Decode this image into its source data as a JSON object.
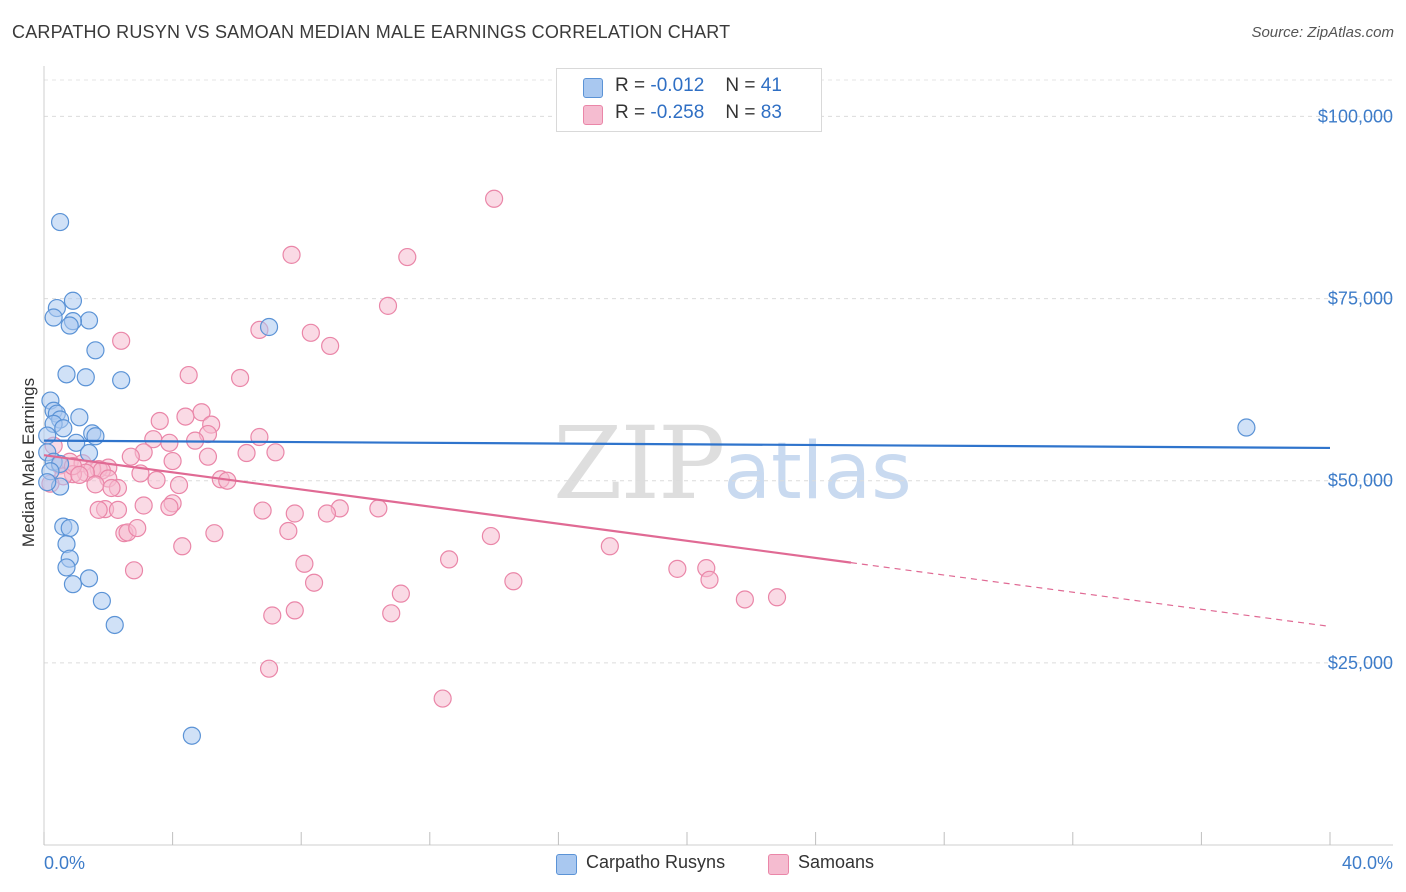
{
  "header": {
    "title": "CARPATHO RUSYN VS SAMOAN MEDIAN MALE EARNINGS CORRELATION CHART",
    "source": "Source: ZipAtlas.com"
  },
  "watermark": {
    "zip": "ZIP",
    "atlas": "atlas"
  },
  "legend_top": [
    {
      "r_label": "R =",
      "r_value": "-0.012",
      "n_label": "N =",
      "n_value": "41"
    },
    {
      "r_label": "R =",
      "r_value": "-0.258",
      "n_label": "N =",
      "n_value": "83"
    }
  ],
  "legend_bottom": [
    {
      "label": "Carpatho Rusyns"
    },
    {
      "label": "Samoans"
    }
  ],
  "colors": {
    "blue_fill": "#a9c8f0",
    "blue_stroke": "#5b93d6",
    "blue_line": "#2f74cc",
    "pink_fill": "#f5bcd0",
    "pink_stroke": "#ea86a8",
    "pink_line": "#e06a94",
    "axis_text": "#3d7cc9"
  },
  "chart_data": {
    "type": "scatter",
    "title": "CARPATHO RUSYN VS SAMOAN MEDIAN MALE EARNINGS CORRELATION CHART",
    "xlabel": "",
    "ylabel": "Median Male Earnings",
    "xlim": [
      0,
      40
    ],
    "ylim": [
      0,
      105000
    ],
    "x_tick_labels": [
      "0.0%",
      "40.0%"
    ],
    "y_ticks": [
      {
        "value": 25000,
        "label": "$25,000"
      },
      {
        "value": 50000,
        "label": "$50,000"
      },
      {
        "value": 75000,
        "label": "$75,000"
      },
      {
        "value": 100000,
        "label": "$100,000"
      }
    ],
    "grid": true,
    "series": [
      {
        "name": "Carpatho Rusyns",
        "R": -0.012,
        "N": 41,
        "trend": {
          "x": [
            0,
            40
          ],
          "y": [
            55500,
            54500
          ],
          "solid_to": 40
        },
        "points": [
          [
            0.5,
            85500
          ],
          [
            0.9,
            74700
          ],
          [
            0.4,
            73700
          ],
          [
            0.3,
            72400
          ],
          [
            1.4,
            72000
          ],
          [
            0.9,
            71900
          ],
          [
            0.8,
            71300
          ],
          [
            7.0,
            71100
          ],
          [
            1.6,
            67900
          ],
          [
            0.7,
            64600
          ],
          [
            1.3,
            64200
          ],
          [
            2.4,
            63800
          ],
          [
            0.2,
            61000
          ],
          [
            0.3,
            59600
          ],
          [
            0.4,
            59200
          ],
          [
            1.1,
            58700
          ],
          [
            0.5,
            58400
          ],
          [
            0.3,
            57800
          ],
          [
            0.6,
            57200
          ],
          [
            1.5,
            56500
          ],
          [
            1.6,
            56100
          ],
          [
            0.1,
            56200
          ],
          [
            1.0,
            55200
          ],
          [
            0.1,
            53900
          ],
          [
            1.4,
            53800
          ],
          [
            0.3,
            52600
          ],
          [
            0.5,
            52300
          ],
          [
            0.2,
            51300
          ],
          [
            0.5,
            49200
          ],
          [
            0.6,
            43700
          ],
          [
            0.8,
            43500
          ],
          [
            0.7,
            41300
          ],
          [
            0.8,
            39300
          ],
          [
            0.7,
            38100
          ],
          [
            1.4,
            36600
          ],
          [
            0.9,
            35800
          ],
          [
            1.8,
            33500
          ],
          [
            2.2,
            30200
          ],
          [
            4.6,
            15000
          ],
          [
            37.4,
            57300
          ],
          [
            0.1,
            49800
          ]
        ]
      },
      {
        "name": "Samoans",
        "R": -0.258,
        "N": 83,
        "trend": {
          "x": [
            0,
            40
          ],
          "y": [
            53500,
            30000
          ],
          "solid_to": 25.1
        },
        "points": [
          [
            14.0,
            88700
          ],
          [
            7.7,
            81000
          ],
          [
            11.3,
            80700
          ],
          [
            10.7,
            74000
          ],
          [
            6.7,
            70700
          ],
          [
            8.3,
            70300
          ],
          [
            2.4,
            69200
          ],
          [
            8.9,
            68500
          ],
          [
            4.5,
            64500
          ],
          [
            6.1,
            64100
          ],
          [
            4.9,
            59400
          ],
          [
            4.4,
            58800
          ],
          [
            3.6,
            58200
          ],
          [
            5.2,
            57700
          ],
          [
            5.1,
            56400
          ],
          [
            6.7,
            56000
          ],
          [
            3.4,
            55700
          ],
          [
            4.7,
            55500
          ],
          [
            3.9,
            55200
          ],
          [
            0.3,
            54800
          ],
          [
            3.1,
            53900
          ],
          [
            7.2,
            53900
          ],
          [
            6.3,
            53800
          ],
          [
            2.7,
            53300
          ],
          [
            5.1,
            53300
          ],
          [
            4.0,
            52700
          ],
          [
            0.8,
            52600
          ],
          [
            1.2,
            52400
          ],
          [
            0.5,
            52100
          ],
          [
            2.0,
            51800
          ],
          [
            1.7,
            51600
          ],
          [
            1.5,
            51600
          ],
          [
            1.8,
            51400
          ],
          [
            1.3,
            51100
          ],
          [
            0.9,
            50900
          ],
          [
            0.6,
            50600
          ],
          [
            3.0,
            51000
          ],
          [
            2.0,
            50300
          ],
          [
            3.5,
            50100
          ],
          [
            5.5,
            50200
          ],
          [
            5.7,
            50000
          ],
          [
            1.6,
            49500
          ],
          [
            4.2,
            49400
          ],
          [
            2.3,
            49000
          ],
          [
            2.1,
            49000
          ],
          [
            0.2,
            49600
          ],
          [
            3.1,
            46600
          ],
          [
            4.0,
            46900
          ],
          [
            3.9,
            46400
          ],
          [
            1.9,
            46100
          ],
          [
            1.7,
            46000
          ],
          [
            2.3,
            46000
          ],
          [
            6.8,
            45900
          ],
          [
            9.2,
            46200
          ],
          [
            10.4,
            46200
          ],
          [
            7.8,
            45500
          ],
          [
            8.8,
            45500
          ],
          [
            2.5,
            42800
          ],
          [
            2.6,
            42900
          ],
          [
            5.3,
            42800
          ],
          [
            7.6,
            43100
          ],
          [
            13.9,
            42400
          ],
          [
            4.3,
            41000
          ],
          [
            17.6,
            41000
          ],
          [
            12.6,
            39200
          ],
          [
            8.1,
            38600
          ],
          [
            2.8,
            37700
          ],
          [
            19.7,
            37900
          ],
          [
            20.6,
            38000
          ],
          [
            8.4,
            36000
          ],
          [
            14.6,
            36200
          ],
          [
            20.7,
            36400
          ],
          [
            11.1,
            34500
          ],
          [
            21.8,
            33700
          ],
          [
            22.8,
            34000
          ],
          [
            7.8,
            32200
          ],
          [
            7.1,
            31500
          ],
          [
            10.8,
            31800
          ],
          [
            7.0,
            24200
          ],
          [
            12.4,
            20100
          ],
          [
            0.9,
            52000
          ],
          [
            1.1,
            50800
          ],
          [
            2.9,
            43500
          ]
        ]
      }
    ]
  }
}
